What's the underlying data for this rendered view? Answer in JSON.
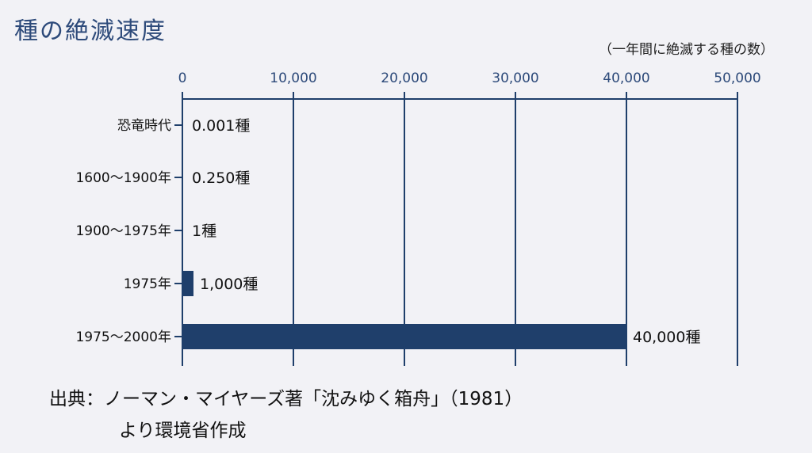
{
  "title": "種の絶滅速度",
  "unit_note": "（一年間に絶滅する種の数）",
  "source": {
    "line1": "出典：ノーマン・マイヤーズ著「沈みゆく箱舟」（1981）",
    "line2": "より環境省作成"
  },
  "chart_data": {
    "type": "bar",
    "orientation": "horizontal",
    "title": "種の絶滅速度",
    "xlabel": "（一年間に絶滅する種の数）",
    "ylabel": "",
    "xlim": [
      0,
      50000
    ],
    "x_ticks": [
      "0",
      "10,000",
      "20,000",
      "30,000",
      "40,000",
      "50,000"
    ],
    "grid": true,
    "categories": [
      "恐竜時代",
      "1600～1900年",
      "1900～1975年",
      "1975年",
      "1975～2000年"
    ],
    "values": [
      0.001,
      0.25,
      1,
      1000,
      40000
    ],
    "data_labels": [
      "0.001種",
      "0.250種",
      "1種",
      "1,000種",
      "40,000種"
    ],
    "bar_color": "#1f3f6b",
    "axis_color": "#1f3f6b"
  }
}
